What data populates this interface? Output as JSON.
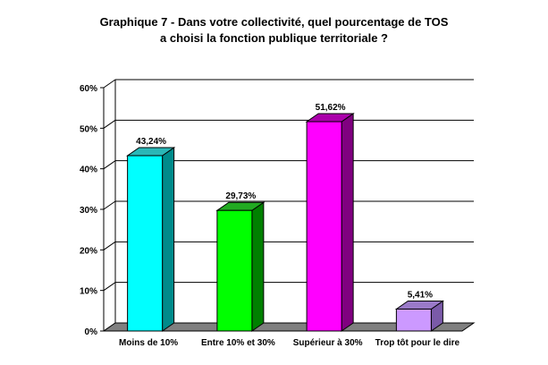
{
  "chart_data": {
    "type": "bar",
    "title_line1": "Graphique 7 - Dans votre collectivité, quel pourcentage de TOS",
    "title_line2": "a choisi la fonction publique territoriale ?",
    "categories": [
      "Moins de 10%",
      "Entre 10% et 30%",
      "Supérieur à 30%",
      "Trop tôt pour le dire"
    ],
    "values": [
      43.24,
      29.73,
      51.62,
      5.41
    ],
    "data_labels": [
      "43,24%",
      "29,73%",
      "51,62%",
      "5,41%"
    ],
    "y_ticks": [
      {
        "value": 0,
        "label": "0%"
      },
      {
        "value": 10,
        "label": "10%"
      },
      {
        "value": 20,
        "label": "20%"
      },
      {
        "value": 30,
        "label": "30%"
      },
      {
        "value": 40,
        "label": "40%"
      },
      {
        "value": 50,
        "label": "50%"
      },
      {
        "value": 60,
        "label": "60%"
      }
    ],
    "ylim": [
      0,
      60
    ],
    "grid": true,
    "bar_colors": [
      "#00ffff",
      "#00ff00",
      "#ff00ff",
      "#cc99ff"
    ],
    "side_colors": [
      "#008b8b",
      "#008000",
      "#800080",
      "#7a5aa8"
    ],
    "top_colors": [
      "#2ab7b7",
      "#22aa22",
      "#aa00aa",
      "#9a7ac8"
    ],
    "floor_color": "#808080"
  }
}
